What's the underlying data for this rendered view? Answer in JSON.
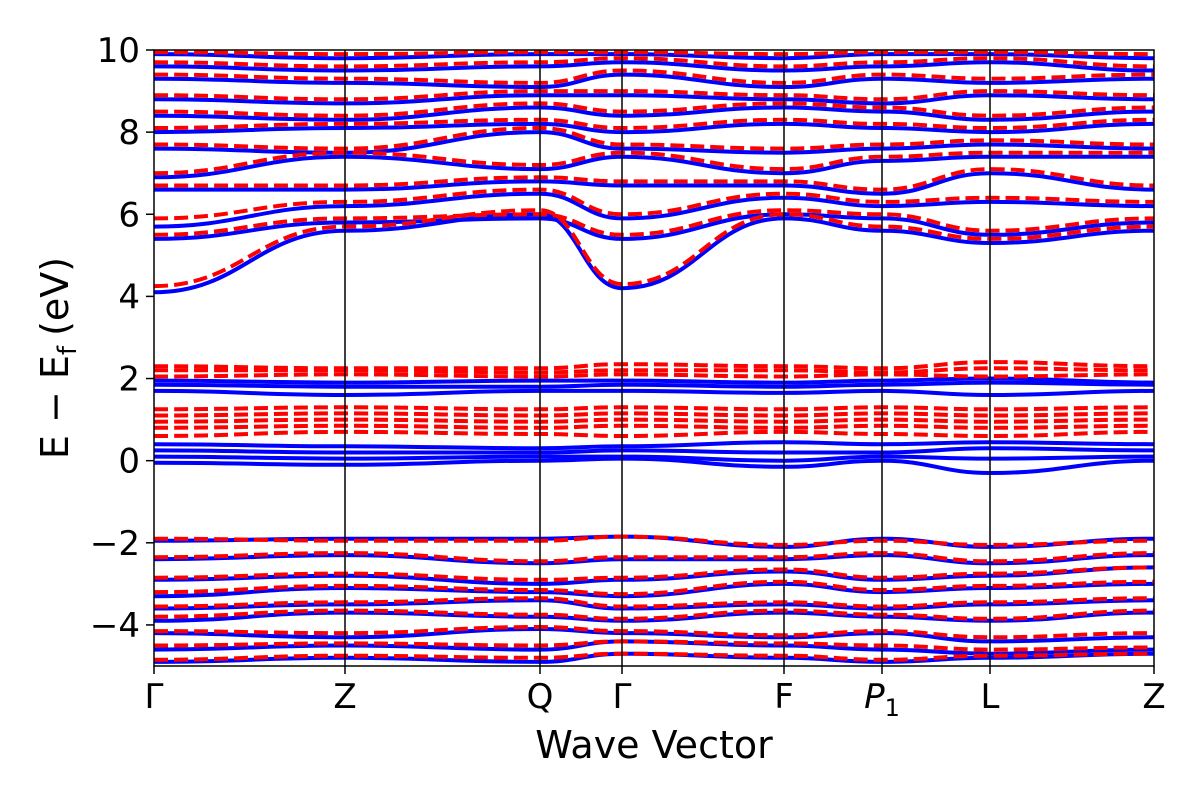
{
  "chart_data": {
    "type": "line",
    "title": "",
    "xlabel": "Wave Vector",
    "ylabel": "E − E",
    "ylabel_subscript": "f",
    "ylabel_unit": "(eV)",
    "ylim": [
      -5,
      10
    ],
    "yticks": [
      -4,
      -2,
      0,
      2,
      4,
      6,
      8,
      10
    ],
    "ytick_labels": [
      "−4",
      "−2",
      "0",
      "2",
      "4",
      "6",
      "8",
      "10"
    ],
    "grid": false,
    "legend": "none",
    "kpath": [
      {
        "label": "Γ",
        "pos": 0.0
      },
      {
        "label": "Z",
        "pos": 0.191
      },
      {
        "label": "Q",
        "pos": 0.386
      },
      {
        "label": "Γ",
        "pos": 0.468
      },
      {
        "label": "F",
        "pos": 0.63
      },
      {
        "label": "P",
        "sub": "1",
        "italic": true,
        "pos": 0.728
      },
      {
        "label": "L",
        "pos": 0.836
      },
      {
        "label": "Z",
        "pos": 1.0
      }
    ],
    "colors": {
      "series_1": "#0000ff",
      "series_2": "#ff0000",
      "frame": "#000000"
    },
    "series": [
      {
        "style": "solid",
        "color": "#0000ff",
        "bands": [
          [
            -4.9,
            -4.8,
            -4.9,
            -4.7,
            -4.8,
            -4.9,
            -4.8,
            -4.7
          ],
          [
            -4.6,
            -4.5,
            -4.6,
            -4.4,
            -4.5,
            -4.6,
            -4.7,
            -4.6
          ],
          [
            -4.2,
            -4.3,
            -4.1,
            -4.2,
            -4.3,
            -4.2,
            -4.4,
            -4.3
          ],
          [
            -3.9,
            -3.7,
            -3.8,
            -3.9,
            -3.7,
            -3.8,
            -3.9,
            -3.7
          ],
          [
            -3.6,
            -3.5,
            -3.4,
            -3.6,
            -3.5,
            -3.6,
            -3.5,
            -3.4
          ],
          [
            -3.3,
            -3.1,
            -3.2,
            -3.3,
            -3.0,
            -3.2,
            -3.1,
            -3.0
          ],
          [
            -2.9,
            -2.8,
            -3.0,
            -2.9,
            -2.7,
            -2.9,
            -2.8,
            -2.6
          ],
          [
            -2.4,
            -2.3,
            -2.5,
            -2.4,
            -2.4,
            -2.3,
            -2.5,
            -2.3
          ],
          [
            -1.95,
            -1.9,
            -1.9,
            -1.85,
            -2.1,
            -1.9,
            -2.1,
            -1.9
          ],
          [
            -0.05,
            -0.1,
            0.0,
            0.05,
            -0.15,
            0.0,
            -0.3,
            0.0
          ],
          [
            0.1,
            0.05,
            0.1,
            0.1,
            0.0,
            0.1,
            0.05,
            0.1
          ],
          [
            0.25,
            0.2,
            0.2,
            0.25,
            0.2,
            0.2,
            0.3,
            0.25
          ],
          [
            0.4,
            0.35,
            0.3,
            0.35,
            0.45,
            0.4,
            0.45,
            0.4
          ],
          [
            1.7,
            1.6,
            1.7,
            1.7,
            1.65,
            1.7,
            1.6,
            1.7
          ],
          [
            1.85,
            1.8,
            1.8,
            1.85,
            1.8,
            1.85,
            1.9,
            1.85
          ],
          [
            1.95,
            1.9,
            1.95,
            1.95,
            1.9,
            1.95,
            2.0,
            1.9
          ],
          [
            4.1,
            5.6,
            6.0,
            4.2,
            5.9,
            5.6,
            5.3,
            5.6
          ],
          [
            5.4,
            5.8,
            5.9,
            5.4,
            6.0,
            5.9,
            5.5,
            5.8
          ],
          [
            5.7,
            6.2,
            6.5,
            5.9,
            6.4,
            6.2,
            6.3,
            6.2
          ],
          [
            6.6,
            6.6,
            6.8,
            6.7,
            6.7,
            6.5,
            7.0,
            6.6
          ],
          [
            6.9,
            7.4,
            7.1,
            7.4,
            7.0,
            7.3,
            7.4,
            7.4
          ],
          [
            7.6,
            7.5,
            8.0,
            7.6,
            7.5,
            7.6,
            7.7,
            7.6
          ],
          [
            8.0,
            8.1,
            8.2,
            8.0,
            8.2,
            8.1,
            8.0,
            8.2
          ],
          [
            8.4,
            8.3,
            8.6,
            8.4,
            8.6,
            8.5,
            8.3,
            8.5
          ],
          [
            8.8,
            8.7,
            8.9,
            8.9,
            8.8,
            8.7,
            8.9,
            8.8
          ],
          [
            9.3,
            9.2,
            9.1,
            9.4,
            9.1,
            9.3,
            9.2,
            9.3
          ],
          [
            9.6,
            9.5,
            9.6,
            9.7,
            9.5,
            9.6,
            9.7,
            9.5
          ],
          [
            9.9,
            9.8,
            9.9,
            9.9,
            9.8,
            9.9,
            9.9,
            9.8
          ]
        ]
      },
      {
        "style": "dashed",
        "color": "#ff0000",
        "bands": [
          [
            -4.85,
            -4.75,
            -4.8,
            -4.7,
            -4.75,
            -4.85,
            -4.75,
            -4.7
          ],
          [
            -4.5,
            -4.45,
            -4.5,
            -4.4,
            -4.45,
            -4.5,
            -4.6,
            -4.55
          ],
          [
            -4.15,
            -4.2,
            -4.05,
            -4.15,
            -4.25,
            -4.15,
            -4.3,
            -4.2
          ],
          [
            -3.8,
            -3.65,
            -3.75,
            -3.85,
            -3.65,
            -3.75,
            -3.85,
            -3.65
          ],
          [
            -3.55,
            -3.45,
            -3.35,
            -3.55,
            -3.45,
            -3.55,
            -3.45,
            -3.35
          ],
          [
            -3.2,
            -3.05,
            -3.15,
            -3.25,
            -2.95,
            -3.15,
            -3.05,
            -2.95
          ],
          [
            -2.85,
            -2.75,
            -2.9,
            -2.85,
            -2.65,
            -2.85,
            -2.75,
            -2.6
          ],
          [
            -2.35,
            -2.25,
            -2.45,
            -2.35,
            -2.35,
            -2.25,
            -2.45,
            -2.25
          ],
          [
            -1.9,
            -1.95,
            -1.95,
            -1.85,
            -2.05,
            -1.95,
            -2.05,
            -1.95
          ],
          [
            0.6,
            0.7,
            0.65,
            0.6,
            0.7,
            0.65,
            0.6,
            0.7
          ],
          [
            0.8,
            0.85,
            0.8,
            0.85,
            0.8,
            0.85,
            0.8,
            0.85
          ],
          [
            0.95,
            1.0,
            0.95,
            1.0,
            0.95,
            1.0,
            0.95,
            1.0
          ],
          [
            1.1,
            1.15,
            1.1,
            1.15,
            1.1,
            1.15,
            1.1,
            1.15
          ],
          [
            1.25,
            1.3,
            1.25,
            1.3,
            1.25,
            1.3,
            1.25,
            1.3
          ],
          [
            2.05,
            2.1,
            2.05,
            2.1,
            2.05,
            2.1,
            2.05,
            2.1
          ],
          [
            2.2,
            2.2,
            2.15,
            2.2,
            2.2,
            2.15,
            2.25,
            2.2
          ],
          [
            2.3,
            2.25,
            2.25,
            2.35,
            2.3,
            2.25,
            2.4,
            2.3
          ],
          [
            4.25,
            5.7,
            6.1,
            4.3,
            6.0,
            5.7,
            5.4,
            5.7
          ],
          [
            5.5,
            5.9,
            6.0,
            5.5,
            6.1,
            6.0,
            5.6,
            5.9
          ],
          [
            5.9,
            6.3,
            6.6,
            6.0,
            6.5,
            6.3,
            6.4,
            6.3
          ],
          [
            6.7,
            6.7,
            6.9,
            6.8,
            6.8,
            6.6,
            7.1,
            6.7
          ],
          [
            7.0,
            7.5,
            7.2,
            7.5,
            7.1,
            7.4,
            7.5,
            7.5
          ],
          [
            7.7,
            7.6,
            8.1,
            7.7,
            7.6,
            7.7,
            7.8,
            7.7
          ],
          [
            8.1,
            8.2,
            8.3,
            8.1,
            8.3,
            8.2,
            8.1,
            8.3
          ],
          [
            8.5,
            8.4,
            8.7,
            8.5,
            8.7,
            8.6,
            8.4,
            8.6
          ],
          [
            8.9,
            8.8,
            9.0,
            9.0,
            8.9,
            8.8,
            9.0,
            8.9
          ],
          [
            9.4,
            9.3,
            9.2,
            9.5,
            9.2,
            9.4,
            9.3,
            9.4
          ],
          [
            9.7,
            9.6,
            9.7,
            9.8,
            9.6,
            9.7,
            9.8,
            9.6
          ],
          [
            9.95,
            9.9,
            9.95,
            9.95,
            9.9,
            9.95,
            9.95,
            9.9
          ]
        ]
      }
    ]
  }
}
